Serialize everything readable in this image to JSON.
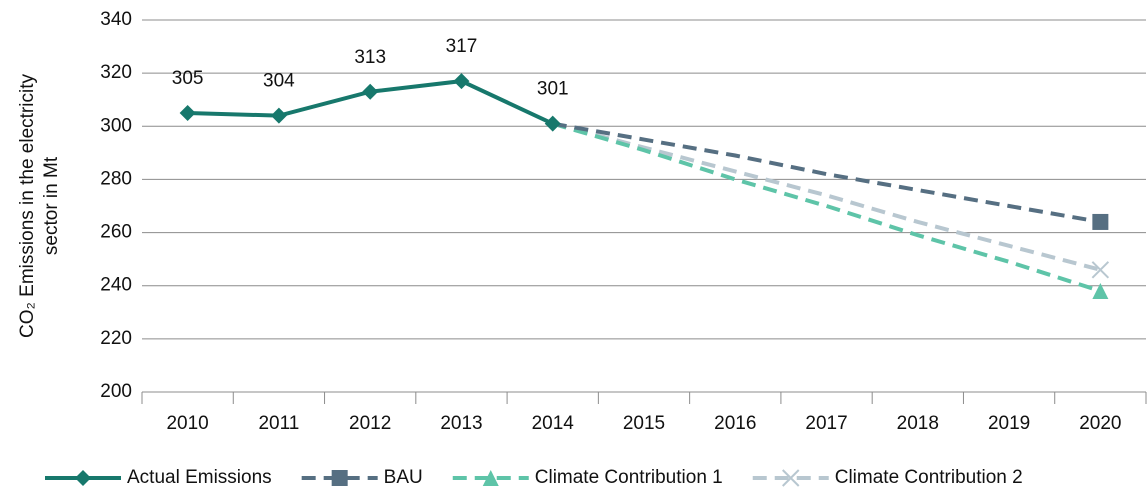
{
  "chart_data": {
    "type": "line",
    "ylabel": [
      "CO₂ Emissions in the electricity",
      "sector in Mt"
    ],
    "categories": [
      "2010",
      "2011",
      "2012",
      "2013",
      "2014",
      "2015",
      "2016",
      "2017",
      "2018",
      "2019",
      "2020"
    ],
    "series": [
      {
        "name": "Actual Emissions",
        "color": "#17786c",
        "dashed": false,
        "marker": "diamond",
        "data_labels": true,
        "values": [
          305,
          304,
          313,
          317,
          301,
          null,
          null,
          null,
          null,
          null,
          null
        ]
      },
      {
        "name": "BAU",
        "color": "#566f82",
        "dashed": true,
        "marker": "square",
        "values": [
          null,
          null,
          null,
          null,
          301,
          295,
          289,
          282,
          276,
          270,
          264
        ]
      },
      {
        "name": "Climate Contribution 1",
        "color": "#5ec4a8",
        "dashed": true,
        "marker": "triangle",
        "values": [
          null,
          null,
          null,
          null,
          301,
          291,
          280,
          270,
          259,
          249,
          238
        ]
      },
      {
        "name": "Climate Contribution 2",
        "color": "#b8c7d0",
        "dashed": true,
        "marker": "x",
        "values": [
          null,
          null,
          null,
          null,
          301,
          292,
          283,
          274,
          264,
          255,
          246
        ]
      }
    ],
    "ylim": [
      200,
      340
    ],
    "yticks": [
      200,
      220,
      240,
      260,
      280,
      300,
      320,
      340
    ],
    "grid": true,
    "legend": "bottom"
  }
}
